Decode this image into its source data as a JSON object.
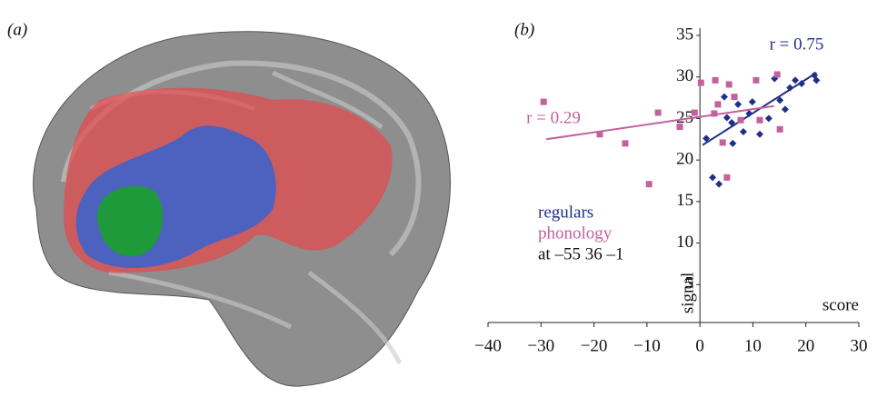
{
  "panel_labels": [
    "(a)",
    "(b)"
  ],
  "chart_data": {
    "type": "scatter",
    "xlabel": "score",
    "ylabel": "signal",
    "xlim": [
      -40,
      30
    ],
    "ylim": [
      0,
      35
    ],
    "xticks": [
      {
        "value": -40,
        "label": "−40"
      },
      {
        "value": -30,
        "label": "−30"
      },
      {
        "value": -20,
        "label": "−20"
      },
      {
        "value": -10,
        "label": "−10"
      },
      0,
      10,
      20,
      30
    ],
    "yticks": [
      5,
      10,
      15,
      20,
      25,
      30,
      35
    ],
    "annotation": "at –55 36 –1",
    "series": [
      {
        "name": "regulars",
        "color": "#1f2f8a",
        "marker": "diamond",
        "r_label": "r = 0.75",
        "x": [
          1.2,
          2.4,
          3.6,
          4.6,
          5.1,
          6.0,
          6.2,
          7.2,
          8.2,
          9.3,
          9.9,
          11.3,
          13.0,
          14.1,
          15.1,
          16.1,
          17.0,
          18.0,
          19.2,
          21.6,
          22.0
        ],
        "y": [
          22.6,
          17.9,
          17.1,
          27.6,
          25.1,
          24.5,
          22.0,
          26.7,
          23.4,
          25.6,
          27.0,
          23.1,
          25.0,
          29.8,
          27.2,
          26.1,
          28.7,
          29.6,
          29.2,
          30.2,
          29.6
        ],
        "trend": {
          "x": [
            0.5,
            22
          ],
          "y": [
            21.8,
            30.5
          ]
        }
      },
      {
        "name": "phonology",
        "color": "#c4609c",
        "marker": "square",
        "r_label": "r = 0.29",
        "x": [
          -29.5,
          -18.9,
          -14.1,
          -9.6,
          -7.9,
          -3.8,
          -1.0,
          0.2,
          2.9,
          5.5,
          4.3,
          5.1,
          7.7,
          10.6,
          11.3,
          14.6,
          15.1,
          2.7,
          3.4,
          6.5
        ],
        "y": [
          27.0,
          23.1,
          22.0,
          17.1,
          25.7,
          24.0,
          25.7,
          29.3,
          29.6,
          29.1,
          22.1,
          17.9,
          24.8,
          29.6,
          24.8,
          30.3,
          23.7,
          25.6,
          26.7,
          27.6
        ],
        "trend": {
          "x": [
            -29,
            14
          ],
          "y": [
            22.5,
            26.5
          ]
        }
      }
    ]
  }
}
